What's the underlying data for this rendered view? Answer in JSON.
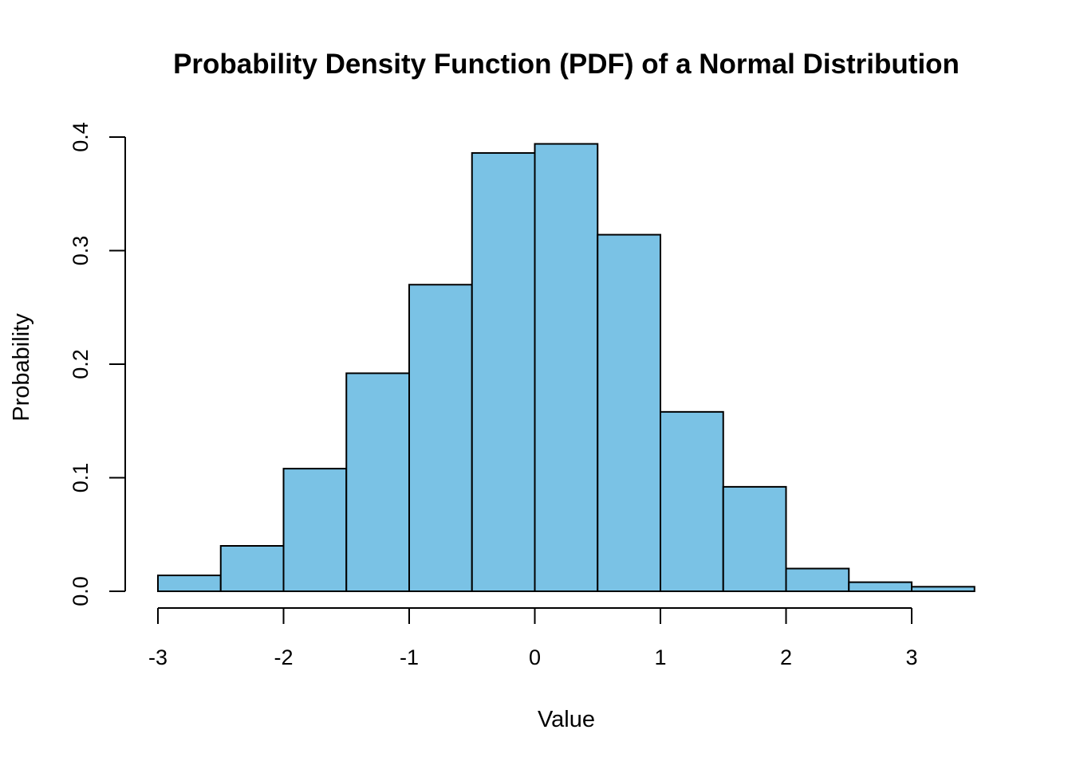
{
  "chart_data": {
    "type": "bar",
    "title": "Probability Density Function (PDF) of a Normal Distribution",
    "xlabel": "Value",
    "ylabel": "Probability",
    "bar_color": "#7AC2E5",
    "bins": [
      {
        "x0": -3.0,
        "x1": -2.5,
        "value": 0.014
      },
      {
        "x0": -2.5,
        "x1": -2.0,
        "value": 0.04
      },
      {
        "x0": -2.0,
        "x1": -1.5,
        "value": 0.108
      },
      {
        "x0": -1.5,
        "x1": -1.0,
        "value": 0.192
      },
      {
        "x0": -1.0,
        "x1": -0.5,
        "value": 0.27
      },
      {
        "x0": -0.5,
        "x1": 0.0,
        "value": 0.386
      },
      {
        "x0": 0.0,
        "x1": 0.5,
        "value": 0.394
      },
      {
        "x0": 0.5,
        "x1": 1.0,
        "value": 0.314
      },
      {
        "x0": 1.0,
        "x1": 1.5,
        "value": 0.158
      },
      {
        "x0": 1.5,
        "x1": 2.0,
        "value": 0.092
      },
      {
        "x0": 2.0,
        "x1": 2.5,
        "value": 0.02
      },
      {
        "x0": 2.5,
        "x1": 3.0,
        "value": 0.008
      },
      {
        "x0": 3.0,
        "x1": 3.5,
        "value": 0.004
      }
    ],
    "xticks": [
      "-3",
      "-2",
      "-1",
      "0",
      "1",
      "2",
      "3"
    ],
    "yticks": [
      "0.0",
      "0.1",
      "0.2",
      "0.3",
      "0.4"
    ],
    "xlim": [
      -3,
      3.5
    ],
    "ylim": [
      0,
      0.4
    ],
    "grid": false,
    "legend": "none"
  }
}
